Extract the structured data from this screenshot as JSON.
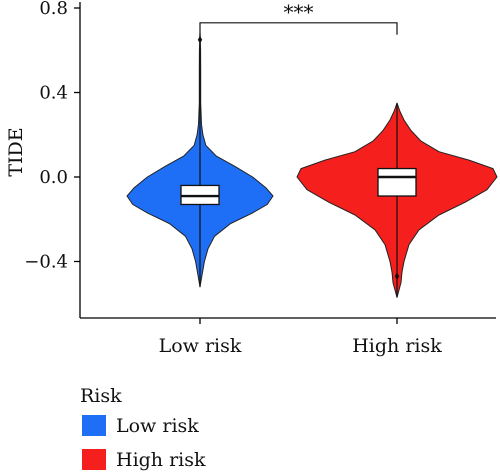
{
  "chart_data": {
    "type": "violin",
    "ylabel": "TIDE",
    "xlabel": "",
    "ylim": [
      -0.56,
      0.8
    ],
    "yticks": [
      "0.8",
      "0.4",
      "0.0",
      "−0.4"
    ],
    "yticks_values": [
      0.8,
      0.4,
      0.0,
      -0.4
    ],
    "categories": [
      "Low risk",
      "High risk"
    ],
    "series": [
      {
        "name": "Low risk",
        "color": "#1e6ff5",
        "min": -0.52,
        "q1": -0.13,
        "median": -0.09,
        "q3": -0.04,
        "max": 0.68,
        "density": [
          [
            -0.52,
            0.0
          ],
          [
            -0.46,
            0.03
          ],
          [
            -0.4,
            0.06
          ],
          [
            -0.34,
            0.11
          ],
          [
            -0.28,
            0.2
          ],
          [
            -0.22,
            0.42
          ],
          [
            -0.17,
            0.72
          ],
          [
            -0.13,
            0.92
          ],
          [
            -0.09,
            1.0
          ],
          [
            -0.05,
            0.9
          ],
          [
            0.0,
            0.72
          ],
          [
            0.05,
            0.48
          ],
          [
            0.1,
            0.22
          ],
          [
            0.15,
            0.08
          ],
          [
            0.2,
            0.04
          ],
          [
            0.25,
            0.02
          ],
          [
            0.35,
            0.01
          ],
          [
            0.5,
            0.01
          ],
          [
            0.6,
            0.008
          ],
          [
            0.68,
            0.0
          ]
        ]
      },
      {
        "name": "High risk",
        "color": "#f5201e",
        "min": -0.57,
        "q1": -0.09,
        "median": 0.0,
        "q3": 0.04,
        "max": 0.35,
        "density": [
          [
            -0.57,
            0.0
          ],
          [
            -0.5,
            0.04
          ],
          [
            -0.45,
            0.05
          ],
          [
            -0.4,
            0.07
          ],
          [
            -0.32,
            0.12
          ],
          [
            -0.25,
            0.22
          ],
          [
            -0.18,
            0.42
          ],
          [
            -0.12,
            0.68
          ],
          [
            -0.06,
            0.9
          ],
          [
            0.0,
            1.0
          ],
          [
            0.04,
            0.96
          ],
          [
            0.08,
            0.72
          ],
          [
            0.12,
            0.42
          ],
          [
            0.17,
            0.24
          ],
          [
            0.22,
            0.14
          ],
          [
            0.27,
            0.07
          ],
          [
            0.31,
            0.03
          ],
          [
            0.35,
            0.0
          ]
        ]
      }
    ],
    "significance": {
      "label": "***",
      "between": [
        "Low risk",
        "High risk"
      ],
      "y": 0.73
    },
    "legend": {
      "title": "Risk",
      "items": [
        "Low risk",
        "High risk"
      ],
      "placement": "bottom-left"
    }
  }
}
